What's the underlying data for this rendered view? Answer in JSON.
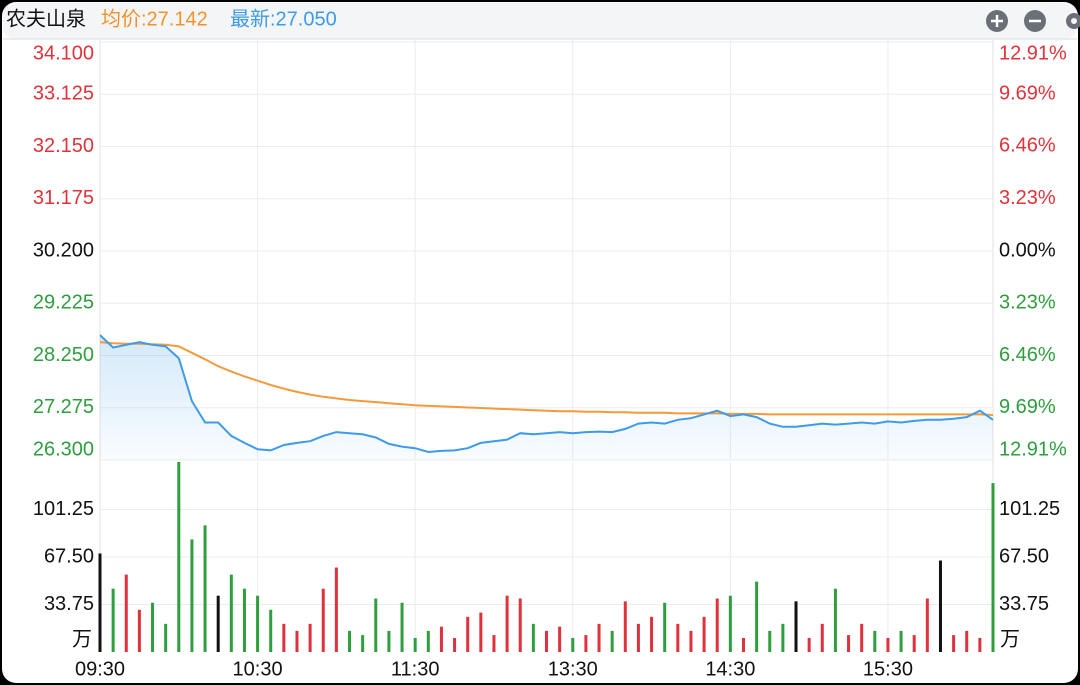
{
  "header": {
    "name": "农夫山泉",
    "avg": "均价:27.142",
    "last": "最新:27.050"
  },
  "chart_data": [
    {
      "type": "line",
      "x": [
        0,
        5,
        10,
        15,
        20,
        25,
        30,
        35,
        40,
        45,
        50,
        55,
        60,
        65,
        70,
        75,
        80,
        85,
        90,
        95,
        100,
        105,
        110,
        115,
        120,
        125,
        130,
        135,
        140,
        145,
        150,
        155,
        160,
        165,
        170,
        175,
        180,
        185,
        190,
        195,
        200,
        205,
        210,
        215,
        220,
        225,
        230,
        235,
        240,
        245,
        250,
        255,
        260,
        265,
        270,
        275,
        280,
        285,
        290,
        295,
        300,
        305,
        310,
        315,
        320,
        325,
        330,
        335,
        340
      ],
      "xlim": [
        0,
        340
      ],
      "ylim": [
        26.3,
        34.1
      ],
      "yticks": [
        {
          "value": 34.1,
          "label": "34.100"
        },
        33.125,
        {
          "value": 32.15,
          "label": "32.150"
        },
        31.175,
        {
          "value": 30.2,
          "label": "30.200"
        },
        29.225,
        {
          "value": 28.25,
          "label": "28.250"
        },
        27.275,
        {
          "value": 26.3,
          "label": "26.300"
        }
      ],
      "y2lim": [
        -12.91,
        12.91
      ],
      "y2ticks": [
        {
          "value": 12.91,
          "label": "12.91%"
        },
        {
          "value": 9.69,
          "label": "9.69%"
        },
        {
          "value": 6.46,
          "label": "6.46%"
        },
        {
          "value": 3.23,
          "label": "3.23%"
        },
        {
          "value": 0,
          "label": "0.00%"
        },
        {
          "value": -3.23,
          "label": "3.23%"
        },
        {
          "value": -6.46,
          "label": "6.46%"
        },
        {
          "value": -9.69,
          "label": "9.69%"
        },
        {
          "value": -12.91,
          "label": "12.91%"
        }
      ],
      "up_color": "#e0323a",
      "down_color": "#2e9e3e",
      "flat_color": "#111111",
      "grid": true,
      "series": [
        {
          "color": "#3d9be9",
          "values": [
            28.63,
            28.4,
            28.45,
            28.5,
            28.45,
            28.42,
            28.2,
            27.4,
            27.0,
            27.0,
            26.75,
            26.62,
            26.5,
            26.48,
            26.58,
            26.62,
            26.65,
            26.75,
            26.82,
            26.8,
            26.78,
            26.72,
            26.6,
            26.55,
            26.52,
            26.45,
            26.47,
            26.48,
            26.52,
            26.62,
            26.65,
            26.68,
            26.8,
            26.78,
            26.8,
            26.82,
            26.8,
            26.82,
            26.83,
            26.82,
            26.88,
            26.98,
            27.0,
            26.98,
            27.05,
            27.08,
            27.15,
            27.22,
            27.12,
            27.15,
            27.1,
            26.98,
            26.92,
            26.92,
            26.95,
            26.98,
            26.96,
            26.98,
            27.0,
            26.98,
            27.02,
            27.0,
            27.03,
            27.05,
            27.05,
            27.07,
            27.1,
            27.22,
            27.05
          ]
        },
        {
          "color": "#f39a3c",
          "values": [
            28.5,
            28.48,
            28.47,
            28.47,
            28.46,
            28.45,
            28.42,
            28.3,
            28.18,
            28.05,
            27.95,
            27.86,
            27.78,
            27.7,
            27.63,
            27.57,
            27.52,
            27.48,
            27.45,
            27.42,
            27.4,
            27.38,
            27.36,
            27.34,
            27.32,
            27.31,
            27.3,
            27.29,
            27.28,
            27.27,
            27.26,
            27.25,
            27.24,
            27.23,
            27.22,
            27.21,
            27.21,
            27.2,
            27.2,
            27.19,
            27.19,
            27.18,
            27.18,
            27.18,
            27.17,
            27.17,
            27.17,
            27.17,
            27.16,
            27.16,
            27.16,
            27.15,
            27.15,
            27.15,
            27.15,
            27.15,
            27.15,
            27.15,
            27.15,
            27.15,
            27.15,
            27.15,
            27.15,
            27.15,
            27.15,
            27.15,
            27.15,
            27.15,
            27.14
          ]
        }
      ]
    },
    {
      "type": "bar",
      "x": [
        0,
        5,
        10,
        15,
        20,
        25,
        30,
        35,
        40,
        45,
        50,
        55,
        60,
        65,
        70,
        75,
        80,
        85,
        90,
        95,
        100,
        105,
        110,
        115,
        120,
        125,
        130,
        135,
        140,
        145,
        150,
        155,
        160,
        165,
        170,
        175,
        180,
        185,
        190,
        195,
        200,
        205,
        210,
        215,
        220,
        225,
        230,
        235,
        240,
        245,
        250,
        255,
        260,
        265,
        270,
        275,
        280,
        285,
        290,
        295,
        300,
        305,
        310,
        315,
        320,
        325,
        330,
        335,
        340
      ],
      "xlim": [
        0,
        340
      ],
      "xticks": [
        {
          "value": 0,
          "label": "09:30"
        },
        {
          "value": 60,
          "label": "10:30"
        },
        {
          "value": 120,
          "label": "11:30"
        },
        {
          "value": 180,
          "label": "13:30"
        },
        {
          "value": 240,
          "label": "14:30"
        },
        {
          "value": 300,
          "label": "15:30"
        }
      ],
      "ylim": [
        0,
        135
      ],
      "yticks": [
        101.25,
        {
          "value": 67.5,
          "label": "67.50"
        },
        33.75
      ],
      "unit": "万",
      "grid": true,
      "values": [
        70,
        45,
        55,
        30,
        35,
        20,
        135,
        80,
        90,
        40,
        55,
        45,
        40,
        30,
        20,
        15,
        20,
        45,
        60,
        15,
        12,
        38,
        15,
        35,
        10,
        15,
        18,
        10,
        25,
        28,
        12,
        40,
        38,
        20,
        15,
        18,
        10,
        12,
        20,
        15,
        36,
        20,
        25,
        35,
        20,
        15,
        25,
        38,
        40,
        10,
        50,
        15,
        20,
        36,
        10,
        20,
        45,
        12,
        20,
        15,
        10,
        15,
        12,
        38,
        65,
        12,
        15,
        10,
        120
      ]
    }
  ]
}
